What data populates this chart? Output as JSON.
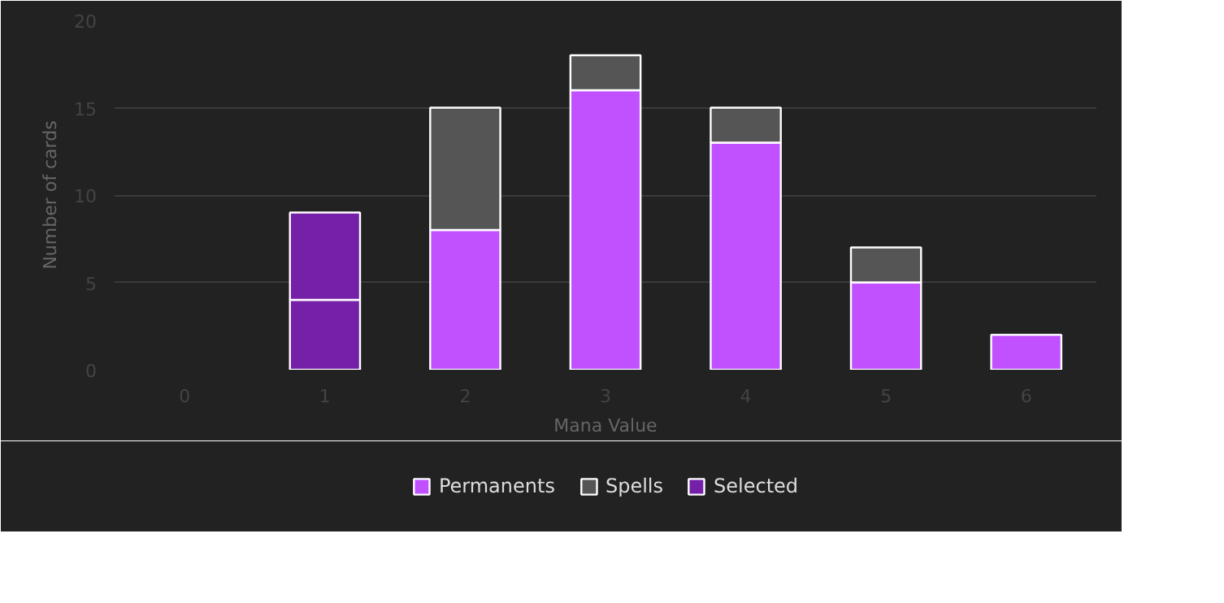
{
  "chart_data": {
    "type": "bar",
    "stacked": true,
    "xlabel": "Mana Value",
    "ylabel": "Number of cards",
    "categories": [
      "0",
      "1",
      "2",
      "3",
      "4",
      "5",
      "6"
    ],
    "series": [
      {
        "name": "Permanents",
        "color": "#c150ff",
        "colors": [
          "#c150ff",
          "#7420a8",
          "#c150ff",
          "#c150ff",
          "#c150ff",
          "#c150ff",
          "#c150ff"
        ],
        "values": [
          0,
          4,
          8,
          16,
          13,
          5,
          2
        ]
      },
      {
        "name": "Spells",
        "color": "#555555",
        "colors": [
          "#555555",
          "#7420a8",
          "#555555",
          "#555555",
          "#555555",
          "#555555",
          "#555555"
        ],
        "values": [
          0,
          5,
          7,
          2,
          2,
          2,
          0
        ]
      },
      {
        "name": "Selected",
        "color": "#7420a8",
        "values": [
          null,
          null,
          null,
          null,
          null,
          null,
          null
        ]
      }
    ],
    "ylim": [
      0,
      20
    ],
    "yticks": [
      0,
      5,
      10,
      15,
      20
    ],
    "grid": "y",
    "legend": "bottom"
  }
}
